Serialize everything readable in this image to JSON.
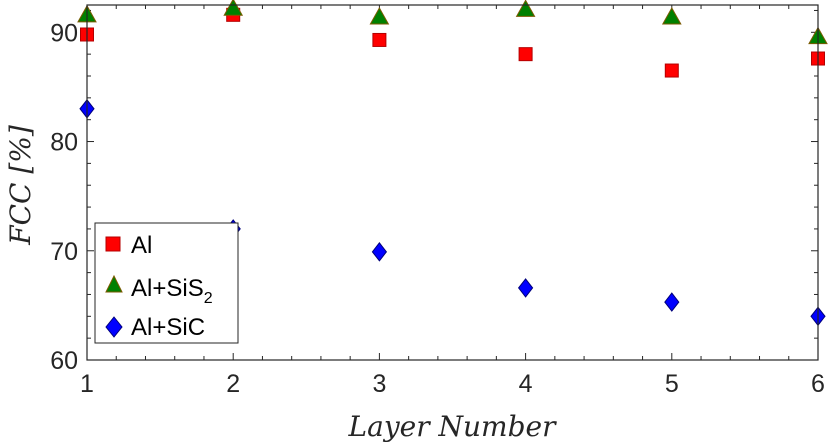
{
  "chart_data": {
    "type": "scatter",
    "x": [
      1,
      2,
      3,
      4,
      5,
      6
    ],
    "xlabel": "Layer Number",
    "ylabel": "FCC [%]",
    "xlim": [
      1,
      6
    ],
    "ylim": [
      60,
      92.5
    ],
    "xticks": [
      1,
      2,
      3,
      4,
      5,
      6
    ],
    "yticks": [
      60,
      70,
      80,
      90
    ],
    "grid": false,
    "legend_position": "bottom-left",
    "series": [
      {
        "name": "Al",
        "marker": "square",
        "color": "#ff0000",
        "edge": "#b40000",
        "values": [
          89.8,
          91.6,
          89.3,
          88.0,
          86.5,
          87.6
        ]
      },
      {
        "name": "Al+SiS2",
        "label_main": "Al+SiS",
        "label_sub": "2",
        "marker": "triangle",
        "color": "#008000",
        "edge": "#7a5a00",
        "values": [
          91.6,
          92.2,
          91.4,
          92.1,
          91.4,
          89.6
        ]
      },
      {
        "name": "Al+SiC",
        "marker": "diamond",
        "color": "#0000ff",
        "edge": "#00007a",
        "values": [
          83.0,
          72.0,
          69.9,
          66.6,
          65.3,
          64.0
        ]
      }
    ]
  }
}
